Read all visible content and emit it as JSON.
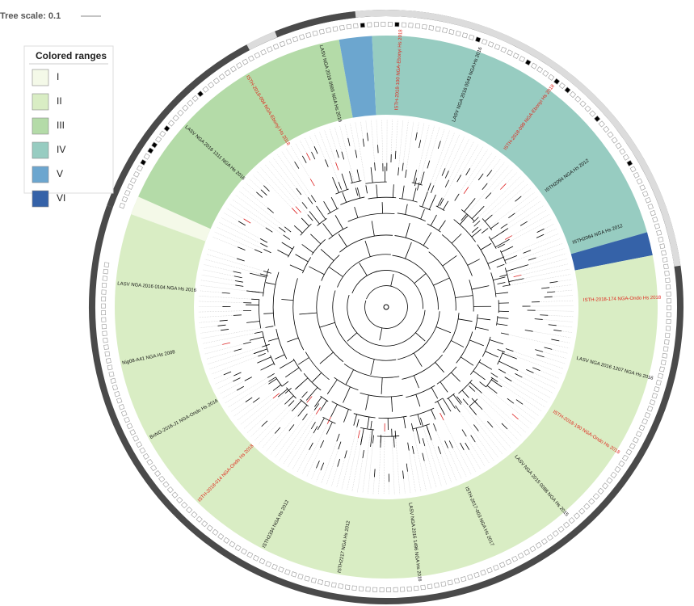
{
  "header": {
    "tree_scale": "Tree scale: 0.1"
  },
  "legend": {
    "title": "Colored ranges",
    "items": [
      {
        "label": "I",
        "color": "#f4f9e8"
      },
      {
        "label": "II",
        "color": "#d9edc4"
      },
      {
        "label": "III",
        "color": "#b4dba8"
      },
      {
        "label": "IV",
        "color": "#97ccc1"
      },
      {
        "label": "V",
        "color": "#6ca6cf"
      },
      {
        "label": "VI",
        "color": "#3562a8"
      }
    ]
  },
  "leaves": [
    {
      "label": "LASV NGA 2016 1311 NGA Hs 2016",
      "highlight": false
    },
    {
      "label": "ISTH-2018-004 NGA-Ebonyi Hs 2018",
      "highlight": true
    },
    {
      "label": "LASV NGA 2016 0565 NGA Hs 2016",
      "highlight": false
    },
    {
      "label": "ISTH-2018-100 NGA-Ebonyi Hs 2018",
      "highlight": true
    },
    {
      "label": "LASV NGA 2016 0543 NGA Hs 2016",
      "highlight": false
    },
    {
      "label": "ISTH-2018-099 NGA-Ebonyi Hs 2018",
      "highlight": true
    },
    {
      "label": "ISTH2094 NGA Hs 2012",
      "highlight": false
    },
    {
      "label": "ISTH2064 NGA Hs 2012",
      "highlight": false
    },
    {
      "label": "ISTH-2018-174 NGA-Ondo Hs 2018",
      "highlight": true
    },
    {
      "label": "LASV NGA 2016 1207 NGA Hs 2016",
      "highlight": false
    },
    {
      "label": "ISTH-2018-190 NGA-Ondo Hs 2018",
      "highlight": true
    },
    {
      "label": "LASV NGA 2015 0088 NGA Hs 2015",
      "highlight": false
    },
    {
      "label": "ISTH-2017-003 NGA Hs 2017",
      "highlight": false
    },
    {
      "label": "LASV NGA 2016 1496 NGA Hs 2016",
      "highlight": false
    },
    {
      "label": "ISTH2217 NGA Hs 2012",
      "highlight": false
    },
    {
      "label": "ISTH2334 NGA Hs 2012",
      "highlight": false
    },
    {
      "label": "ISTH-2018-014 NGA-Ondo Hs 2018",
      "highlight": true
    },
    {
      "label": "BnNG-2016-J1 NGA-Ondo Hs 2016",
      "highlight": false
    },
    {
      "label": "Nig08-A41 NGA Hs 2008",
      "highlight": false
    },
    {
      "label": "LASV NGA 2016 0104 NGA Hs 2016",
      "highlight": false
    }
  ]
}
